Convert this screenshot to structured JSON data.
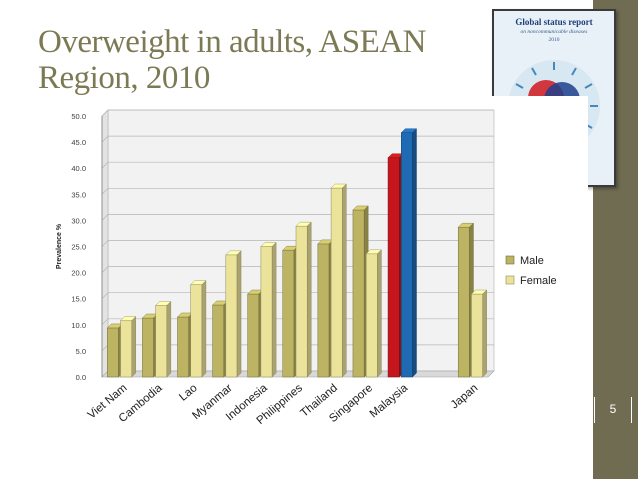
{
  "slide": {
    "title": "Overweight in adults, ASEAN Region, 2010",
    "page_number": "5",
    "cover": {
      "title": "Global status report",
      "subtitle": "on noncommunicable diseases",
      "year": "2010"
    }
  },
  "colors": {
    "side_bar": "#6f6c52",
    "title": "#7c7a54",
    "male": "#bdb463",
    "female": "#ece39a",
    "malaysia_male": "#c4161c",
    "malaysia_female": "#1e6ab3",
    "plot_bg": "#f2f2f2"
  },
  "chart_data": {
    "type": "bar",
    "ylabel": "Prevalence %",
    "xlabel": "",
    "ylim": [
      0,
      50
    ],
    "ytick_step": 5,
    "ytick_labels": [
      "0.0",
      "5.0",
      "10.0",
      "15.0",
      "20.0",
      "25.0",
      "30.0",
      "35.0",
      "40.0",
      "45.0",
      "50.0"
    ],
    "categories": [
      "Viet Nam",
      "Cambodia",
      "Lao",
      "Myanmar",
      "Indonesia",
      "Philippines",
      "Thailand",
      "Singapore",
      "Malaysia",
      "",
      "Japan"
    ],
    "series": [
      {
        "name": "Male",
        "values": [
          9.4,
          11.3,
          11.5,
          13.8,
          15.9,
          24.3,
          25.5,
          32.0,
          42.0,
          null,
          28.7
        ]
      },
      {
        "name": "Female",
        "values": [
          10.8,
          13.7,
          17.7,
          23.4,
          25.0,
          28.9,
          36.2,
          23.6,
          46.8,
          null,
          15.9
        ]
      }
    ],
    "legend_position": "right",
    "grid": true
  }
}
